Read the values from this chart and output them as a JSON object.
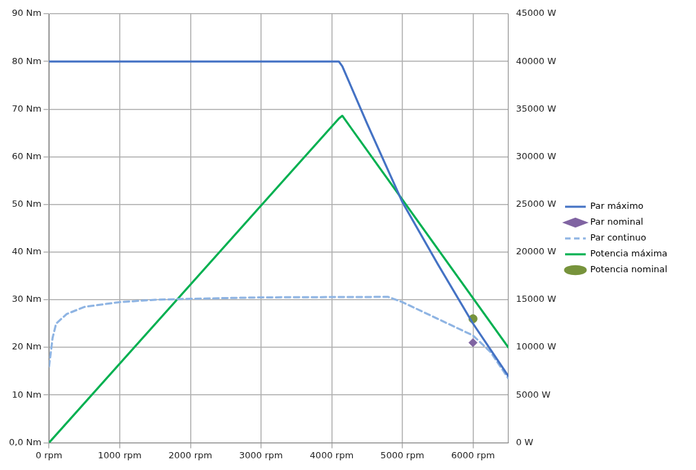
{
  "chart_data": {
    "type": "line",
    "grid": true,
    "legend": "right",
    "line_style": "solid",
    "marker": "none",
    "xlim": [
      0,
      6500
    ],
    "xticks": [
      {
        "value": 0,
        "label": "0 rpm"
      },
      {
        "value": 1000,
        "label": "1000 rpm"
      },
      {
        "value": 2000,
        "label": "2000 rpm"
      },
      {
        "value": 3000,
        "label": "3000 rpm"
      },
      {
        "value": 4000,
        "label": "4000 rpm"
      },
      {
        "value": 5000,
        "label": "5000 rpm"
      },
      {
        "value": 6000,
        "label": "6000 rpm"
      }
    ],
    "ylim": [
      0,
      90
    ],
    "yticks": [
      {
        "value": 0,
        "label": "0,0 Nm"
      },
      {
        "value": 10,
        "label": "10 Nm"
      },
      {
        "value": 20,
        "label": "20 Nm"
      },
      {
        "value": 30,
        "label": "30 Nm"
      },
      {
        "value": 40,
        "label": "40 Nm"
      },
      {
        "value": 50,
        "label": "50 Nm"
      },
      {
        "value": 60,
        "label": "60 Nm"
      },
      {
        "value": 70,
        "label": "70 Nm"
      },
      {
        "value": 80,
        "label": "80 Nm"
      },
      {
        "value": 90,
        "label": "90 Nm"
      }
    ],
    "y2lim": [
      0,
      45000
    ],
    "y2ticks": [
      {
        "value": 0,
        "label": "0 W"
      },
      {
        "value": 5000,
        "label": "5000 W"
      },
      {
        "value": 10000,
        "label": "10000 W"
      },
      {
        "value": 15000,
        "label": "15000 W"
      },
      {
        "value": 20000,
        "label": "20000 W"
      },
      {
        "value": 25000,
        "label": "25000 W"
      },
      {
        "value": 30000,
        "label": "30000 W"
      },
      {
        "value": 35000,
        "label": "35000 W"
      },
      {
        "value": 40000,
        "label": "40000 W"
      },
      {
        "value": 45000,
        "label": "45000 W"
      }
    ],
    "series": [
      {
        "name": "Par máximo",
        "color": "#4472c4",
        "x": [
          0,
          4100,
          4150,
          4500,
          5000,
          5500,
          6000,
          6500
        ],
        "values": [
          80,
          80,
          79,
          67,
          50.5,
          37.5,
          25,
          14
        ]
      },
      {
        "name": "Par nominal",
        "type": "scatter",
        "marker": "diamond",
        "color": "#8064a2",
        "x": [
          6000
        ],
        "values": [
          21
        ]
      },
      {
        "name": "Par continuo",
        "line_style": "dashed",
        "color": "#8eb4e3",
        "x": [
          0,
          50,
          100,
          250,
          500,
          1000,
          1500,
          2000,
          3000,
          4800,
          5000,
          5500,
          6000,
          6250,
          6500
        ],
        "values": [
          16,
          22,
          25,
          27,
          28.5,
          29.5,
          30,
          30.2,
          30.5,
          30.6,
          29.5,
          26,
          22.5,
          19,
          13.5
        ]
      },
      {
        "name": "Potencia máxima",
        "axis": "y2",
        "color": "#00b050",
        "x": [
          0,
          4100,
          4150,
          6500
        ],
        "values": [
          0,
          34000,
          34300,
          10000
        ]
      },
      {
        "name": "Potencia nominal",
        "type": "scatter",
        "axis": "y2",
        "marker": "circle",
        "color": "#77933c",
        "x": [
          6000
        ],
        "values": [
          13000
        ]
      }
    ]
  }
}
